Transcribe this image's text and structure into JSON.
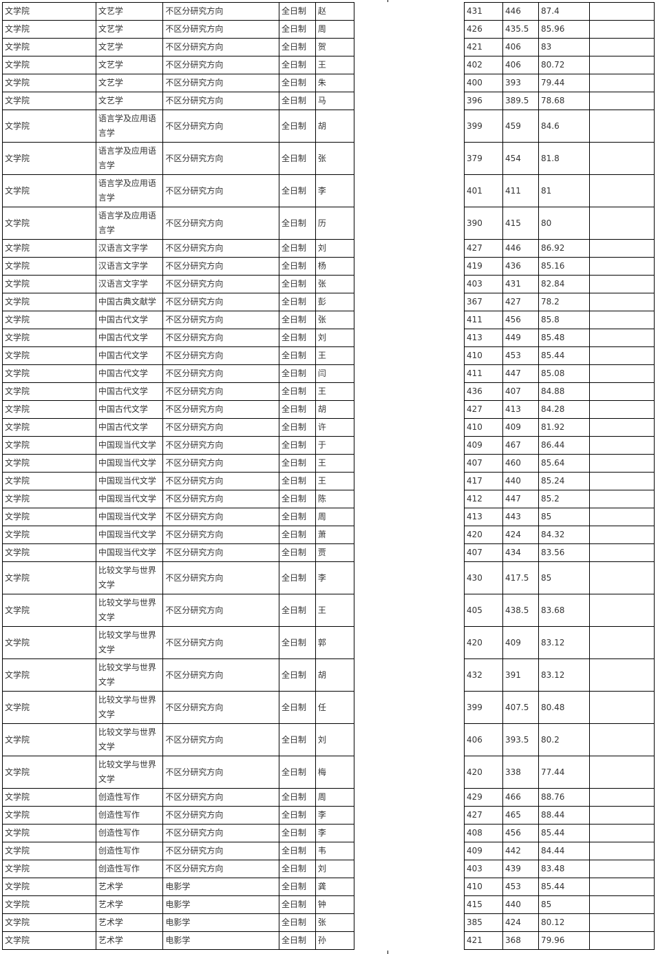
{
  "rows": [
    [
      "文学院",
      "文艺学",
      "不区分研究方向",
      "全日制",
      "赵",
      "431",
      "446",
      "87.4",
      ""
    ],
    [
      "文学院",
      "文艺学",
      "不区分研究方向",
      "全日制",
      "周",
      "426",
      "435.5",
      "85.96",
      ""
    ],
    [
      "文学院",
      "文艺学",
      "不区分研究方向",
      "全日制",
      "贺",
      "421",
      "406",
      "83",
      ""
    ],
    [
      "文学院",
      "文艺学",
      "不区分研究方向",
      "全日制",
      "王",
      "402",
      "406",
      "80.72",
      ""
    ],
    [
      "文学院",
      "文艺学",
      "不区分研究方向",
      "全日制",
      "朱",
      "400",
      "393",
      "79.44",
      ""
    ],
    [
      "文学院",
      "文艺学",
      "不区分研究方向",
      "全日制",
      "马",
      "396",
      "389.5",
      "78.68",
      ""
    ],
    [
      "文学院",
      "语言学及应用语言学",
      "不区分研究方向",
      "全日制",
      "胡",
      "399",
      "459",
      "84.6",
      ""
    ],
    [
      "文学院",
      "语言学及应用语言学",
      "不区分研究方向",
      "全日制",
      "张",
      "379",
      "454",
      "81.8",
      ""
    ],
    [
      "文学院",
      "语言学及应用语言学",
      "不区分研究方向",
      "全日制",
      "李",
      "401",
      "411",
      "81",
      ""
    ],
    [
      "文学院",
      "语言学及应用语言学",
      "不区分研究方向",
      "全日制",
      "历",
      "390",
      "415",
      "80",
      ""
    ],
    [
      "文学院",
      "汉语言文字学",
      "不区分研究方向",
      "全日制",
      "刘",
      "427",
      "446",
      "86.92",
      ""
    ],
    [
      "文学院",
      "汉语言文字学",
      "不区分研究方向",
      "全日制",
      "杨",
      "419",
      "436",
      "85.16",
      ""
    ],
    [
      "文学院",
      "汉语言文字学",
      "不区分研究方向",
      "全日制",
      "张",
      "403",
      "431",
      "82.84",
      ""
    ],
    [
      "文学院",
      "中国古典文献学",
      "不区分研究方向",
      "全日制",
      "彭",
      "367",
      "427",
      "78.2",
      ""
    ],
    [
      "文学院",
      "中国古代文学",
      "不区分研究方向",
      "全日制",
      "张",
      "411",
      "456",
      "85.8",
      ""
    ],
    [
      "文学院",
      "中国古代文学",
      "不区分研究方向",
      "全日制",
      "刘",
      "413",
      "449",
      "85.48",
      ""
    ],
    [
      "文学院",
      "中国古代文学",
      "不区分研究方向",
      "全日制",
      "王",
      "410",
      "453",
      "85.44",
      ""
    ],
    [
      "文学院",
      "中国古代文学",
      "不区分研究方向",
      "全日制",
      "闫",
      "411",
      "447",
      "85.08",
      ""
    ],
    [
      "文学院",
      "中国古代文学",
      "不区分研究方向",
      "全日制",
      "王",
      "436",
      "407",
      "84.88",
      ""
    ],
    [
      "文学院",
      "中国古代文学",
      "不区分研究方向",
      "全日制",
      "胡",
      "427",
      "413",
      "84.28",
      ""
    ],
    [
      "文学院",
      "中国古代文学",
      "不区分研究方向",
      "全日制",
      "许",
      "410",
      "409",
      "81.92",
      ""
    ],
    [
      "文学院",
      "中国现当代文学",
      "不区分研究方向",
      "全日制",
      "于",
      "409",
      "467",
      "86.44",
      ""
    ],
    [
      "文学院",
      "中国现当代文学",
      "不区分研究方向",
      "全日制",
      "王",
      "407",
      "460",
      "85.64",
      ""
    ],
    [
      "文学院",
      "中国现当代文学",
      "不区分研究方向",
      "全日制",
      "王",
      "417",
      "440",
      "85.24",
      ""
    ],
    [
      "文学院",
      "中国现当代文学",
      "不区分研究方向",
      "全日制",
      "陈",
      "412",
      "447",
      "85.2",
      ""
    ],
    [
      "文学院",
      "中国现当代文学",
      "不区分研究方向",
      "全日制",
      "周",
      "413",
      "443",
      "85",
      ""
    ],
    [
      "文学院",
      "中国现当代文学",
      "不区分研究方向",
      "全日制",
      "萧",
      "420",
      "424",
      "84.32",
      ""
    ],
    [
      "文学院",
      "中国现当代文学",
      "不区分研究方向",
      "全日制",
      "贾",
      "407",
      "434",
      "83.56",
      ""
    ],
    [
      "文学院",
      "比较文学与世界文学",
      "不区分研究方向",
      "全日制",
      "李",
      "430",
      "417.5",
      "85",
      ""
    ],
    [
      "文学院",
      "比较文学与世界文学",
      "不区分研究方向",
      "全日制",
      "王",
      "405",
      "438.5",
      "83.68",
      ""
    ],
    [
      "文学院",
      "比较文学与世界文学",
      "不区分研究方向",
      "全日制",
      "郭",
      "420",
      "409",
      "83.12",
      ""
    ],
    [
      "文学院",
      "比较文学与世界文学",
      "不区分研究方向",
      "全日制",
      "胡",
      "432",
      "391",
      "83.12",
      ""
    ],
    [
      "文学院",
      "比较文学与世界文学",
      "不区分研究方向",
      "全日制",
      "任",
      "399",
      "407.5",
      "80.48",
      ""
    ],
    [
      "文学院",
      "比较文学与世界文学",
      "不区分研究方向",
      "全日制",
      "刘",
      "406",
      "393.5",
      "80.2",
      ""
    ],
    [
      "文学院",
      "比较文学与世界文学",
      "不区分研究方向",
      "全日制",
      "梅",
      "420",
      "338",
      "77.44",
      ""
    ],
    [
      "文学院",
      "创造性写作",
      "不区分研究方向",
      "全日制",
      "周",
      "429",
      "466",
      "88.76",
      ""
    ],
    [
      "文学院",
      "创造性写作",
      "不区分研究方向",
      "全日制",
      "李",
      "427",
      "465",
      "88.44",
      ""
    ],
    [
      "文学院",
      "创造性写作",
      "不区分研究方向",
      "全日制",
      "李",
      "408",
      "456",
      "85.44",
      ""
    ],
    [
      "文学院",
      "创造性写作",
      "不区分研究方向",
      "全日制",
      "韦",
      "409",
      "442",
      "84.44",
      ""
    ],
    [
      "文学院",
      "创造性写作",
      "不区分研究方向",
      "全日制",
      "刘",
      "403",
      "439",
      "83.48",
      ""
    ],
    [
      "文学院",
      "艺术学",
      "电影学",
      "全日制",
      "龚",
      "410",
      "453",
      "85.44",
      ""
    ],
    [
      "文学院",
      "艺术学",
      "电影学",
      "全日制",
      "钟",
      "415",
      "440",
      "85",
      ""
    ],
    [
      "文学院",
      "艺术学",
      "电影学",
      "全日制",
      "张",
      "385",
      "424",
      "80.12",
      ""
    ],
    [
      "文学院",
      "艺术学",
      "电影学",
      "全日制",
      "孙",
      "421",
      "368",
      "79.96",
      ""
    ]
  ]
}
